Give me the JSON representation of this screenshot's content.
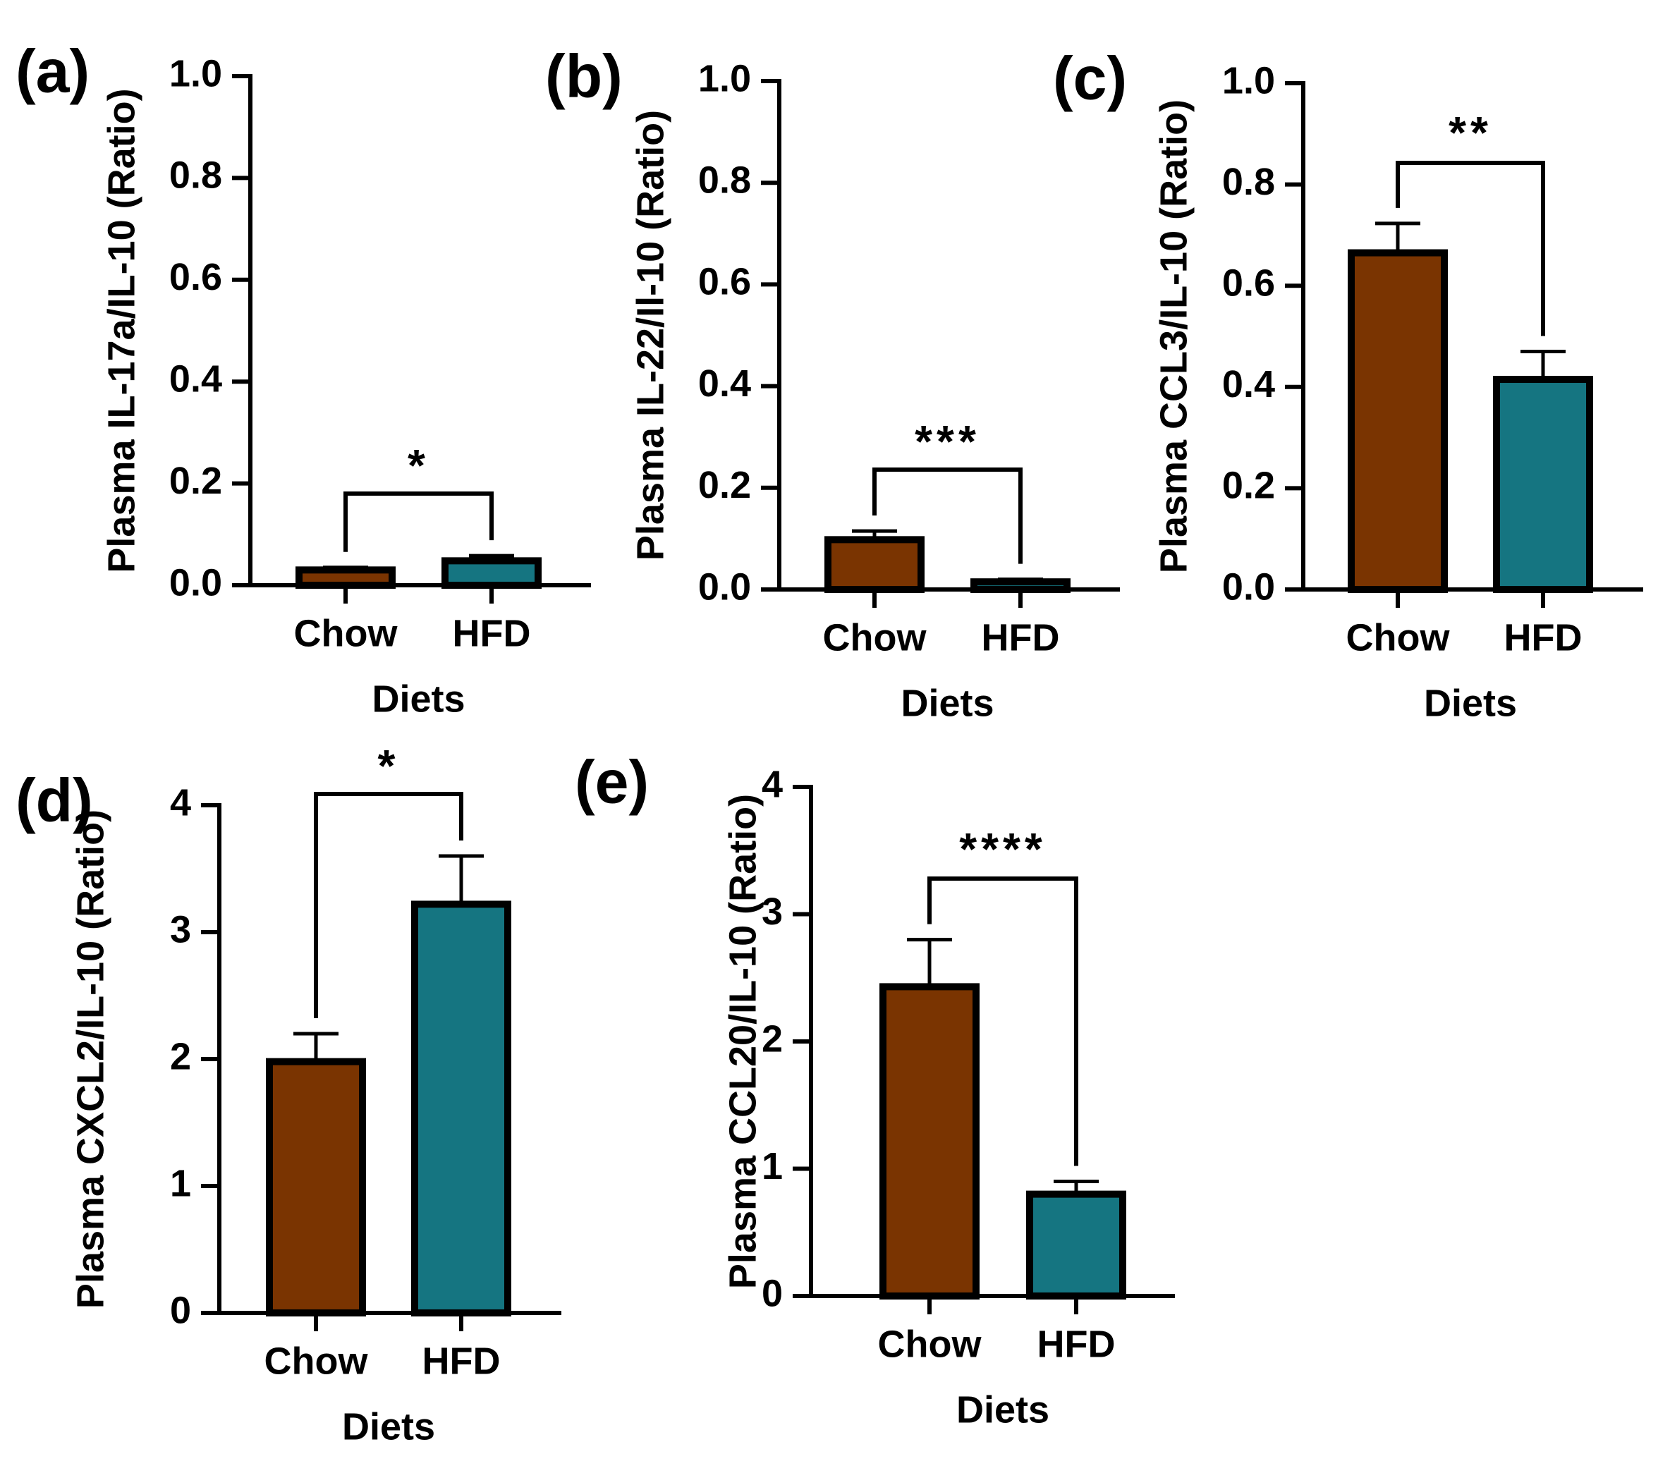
{
  "colors": {
    "chow": "#7a3401",
    "hfd": "#157581",
    "axis": "#000000"
  },
  "chart_data": [
    {
      "panel": "(a)",
      "type": "bar",
      "categories": [
        "Chow",
        "HFD"
      ],
      "values": [
        0.03,
        0.048
      ],
      "errors": [
        0.005,
        0.01
      ],
      "ylabel": "Plasma IL-17a/IL-10 (Ratio)",
      "xlabel": "Diets",
      "ylim": [
        0,
        1.0
      ],
      "yticks": [
        "0.0",
        "0.2",
        "0.4",
        "0.6",
        "0.8",
        "1.0"
      ],
      "significance": "*"
    },
    {
      "panel": "(b)",
      "type": "bar",
      "categories": [
        "Chow",
        "HFD"
      ],
      "values": [
        0.098,
        0.015
      ],
      "errors": [
        0.017,
        0.005
      ],
      "ylabel": "Plasma IL-22/Il-10 (Ratio)",
      "xlabel": "Diets",
      "ylim": [
        0,
        1.0
      ],
      "yticks": [
        "0.0",
        "0.2",
        "0.4",
        "0.6",
        "0.8",
        "1.0"
      ],
      "significance": "***"
    },
    {
      "panel": "(c)",
      "type": "bar",
      "categories": [
        "Chow",
        "HFD"
      ],
      "values": [
        0.665,
        0.415
      ],
      "errors": [
        0.058,
        0.055
      ],
      "ylabel": "Plasma CCL3/IL-10 (Ratio)",
      "xlabel": "Diets",
      "ylim": [
        0,
        1.0
      ],
      "yticks": [
        "0.0",
        "0.2",
        "0.4",
        "0.6",
        "0.8",
        "1.0"
      ],
      "significance": "**"
    },
    {
      "panel": "(d)",
      "type": "bar",
      "categories": [
        "Chow",
        "HFD"
      ],
      "values": [
        1.98,
        3.22
      ],
      "errors": [
        0.22,
        0.38
      ],
      "ylabel": "Plasma CXCL2/IL-10 (Ratio)",
      "xlabel": "Diets",
      "ylim": [
        0,
        4
      ],
      "yticks": [
        "0",
        "1",
        "2",
        "3",
        "4"
      ],
      "significance": "*"
    },
    {
      "panel": "(e)",
      "type": "bar",
      "categories": [
        "Chow",
        "HFD"
      ],
      "values": [
        2.43,
        0.8
      ],
      "errors": [
        0.37,
        0.1
      ],
      "ylabel": "Plasma CCL20/IL-10 (Ratio)",
      "xlabel": "Diets",
      "ylim": [
        0,
        4
      ],
      "yticks": [
        "0",
        "1",
        "2",
        "3",
        "4"
      ],
      "significance": "****"
    }
  ]
}
